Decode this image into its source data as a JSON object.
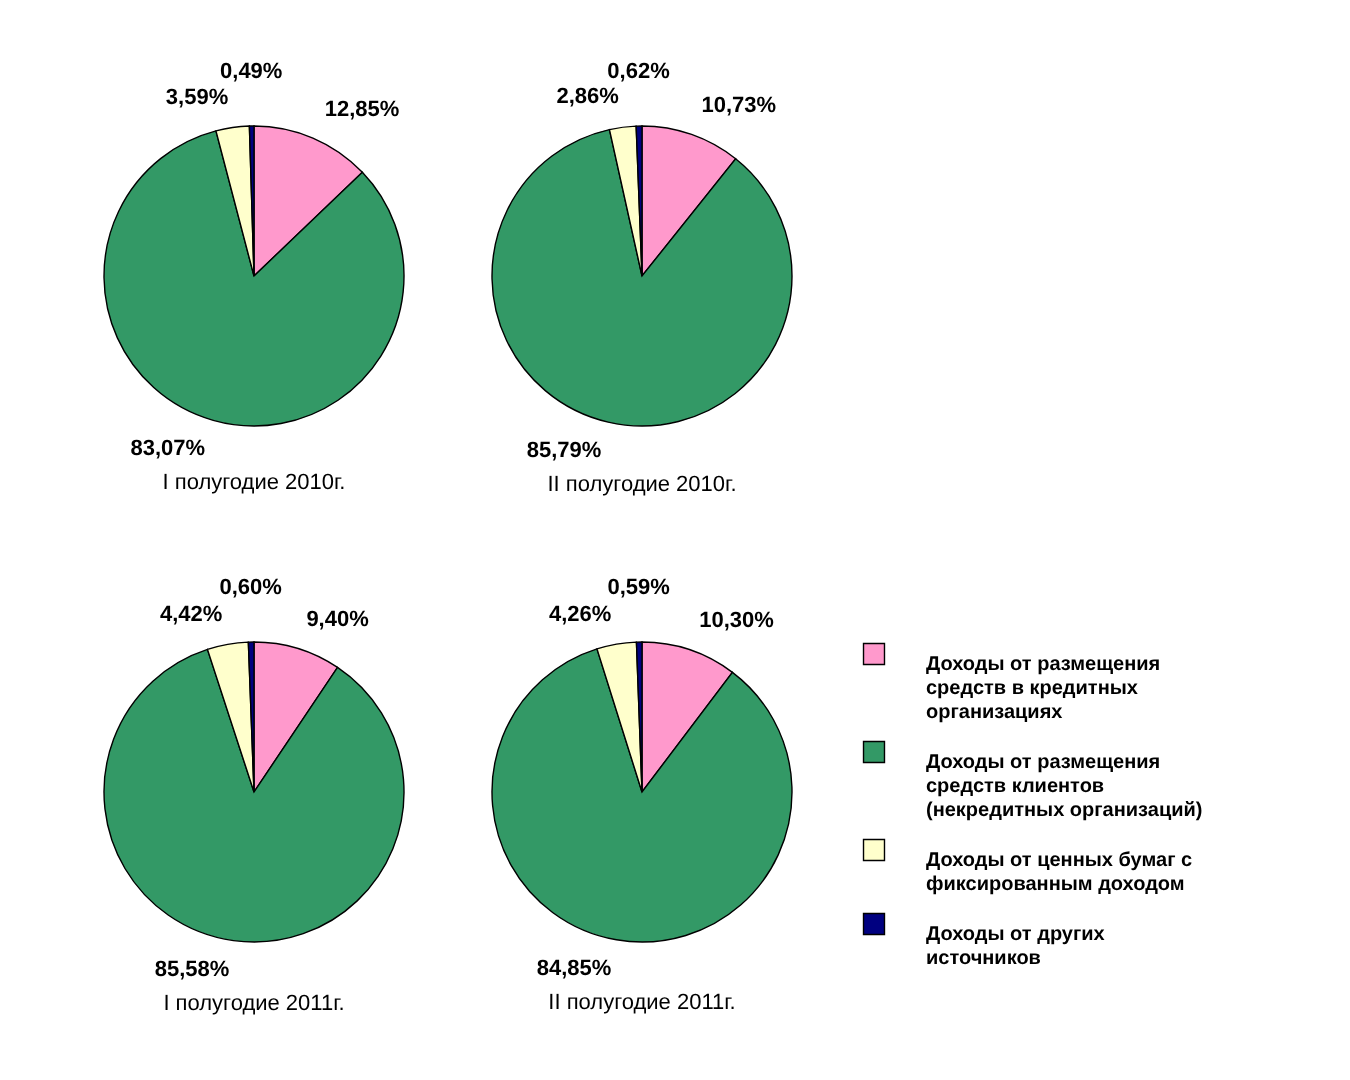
{
  "chart_data": [
    {
      "type": "pie",
      "title": "I полугодие  2010г.",
      "values": [
        12.85,
        83.07,
        3.59,
        0.49
      ],
      "value_labels": [
        "12,85%",
        "83,07%",
        "3,59%",
        "0,49%"
      ],
      "colors": [
        "#ff99cc",
        "#339966",
        "#ffffcc",
        "#000080"
      ]
    },
    {
      "type": "pie",
      "title": "II полугодие  2010г.",
      "values": [
        10.73,
        85.79,
        2.86,
        0.62
      ],
      "value_labels": [
        "10,73%",
        "85,79%",
        "2,86%",
        "0,62%"
      ],
      "colors": [
        "#ff99cc",
        "#339966",
        "#ffffcc",
        "#000080"
      ]
    },
    {
      "type": "pie",
      "title": "I полугодие  2011г.",
      "values": [
        9.4,
        85.58,
        4.42,
        0.6
      ],
      "value_labels": [
        "9,40%",
        "85,58%",
        "4,42%",
        "0,60%"
      ],
      "colors": [
        "#ff99cc",
        "#339966",
        "#ffffcc",
        "#000080"
      ]
    },
    {
      "type": "pie",
      "title": "II полугодие  2011г.",
      "categories": [
        "Доходы от размещения средств в кредитных организациях",
        "Доходы от размещения средств  клиентов (некредитных организаций)",
        "Доходы от ценных бумаг с фиксированным  доходом",
        "Доходы от других источников"
      ],
      "values": [
        10.3,
        84.85,
        4.26,
        0.59
      ],
      "value_labels": [
        "10,30%",
        "84,85%",
        "4,26%",
        "0,59%"
      ],
      "colors": [
        "#ff99cc",
        "#339966",
        "#ffffcc",
        "#000080"
      ],
      "legend": "right"
    }
  ]
}
